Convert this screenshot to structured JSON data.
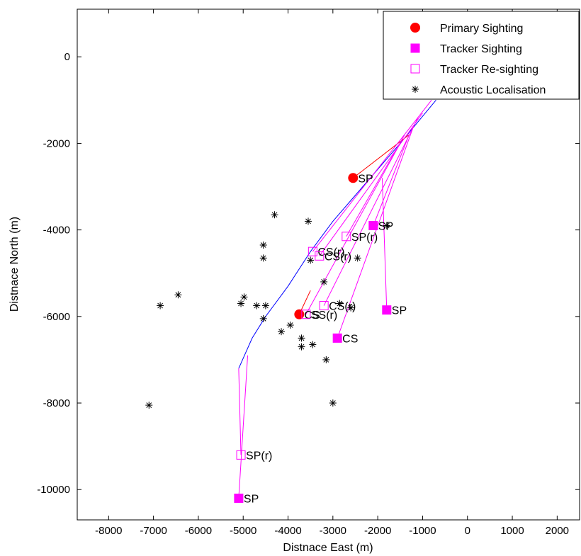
{
  "chart_data": {
    "type": "scatter",
    "xlabel": "Distnace East (m)",
    "ylabel": "Distnace North (m)",
    "xlim": [
      -8700,
      2500
    ],
    "ylim": [
      -10700,
      1100
    ],
    "xticks": [
      -8000,
      -7000,
      -6000,
      -5000,
      -4000,
      -3000,
      -2000,
      -1000,
      0,
      1000,
      2000
    ],
    "yticks": [
      0,
      -2000,
      -4000,
      -6000,
      -8000,
      -10000
    ],
    "grid": false,
    "legend_position": "top-right",
    "legend": [
      {
        "label": "Primary Sighting",
        "marker": "circle",
        "color": "#ff0000"
      },
      {
        "label": "Tracker Sighting",
        "marker": "square-filled",
        "color": "#ff00ff"
      },
      {
        "label": "Tracker Re-sighting",
        "marker": "square-open",
        "color": "#ff00ff"
      },
      {
        "label": "Acoustic Localisation",
        "marker": "asterisk",
        "color": "#000000"
      }
    ],
    "vessel_track": {
      "color": "#0000ff",
      "points": [
        [
          -700,
          -1000
        ],
        [
          -1100,
          -1500
        ],
        [
          -1500,
          -2000
        ],
        [
          -2000,
          -2600
        ],
        [
          -2500,
          -3200
        ],
        [
          -3000,
          -3800
        ],
        [
          -3500,
          -4500
        ],
        [
          -4000,
          -5300
        ],
        [
          -4500,
          -6000
        ],
        [
          -4800,
          -6500
        ],
        [
          -5100,
          -7200
        ]
      ]
    },
    "sightings": [
      {
        "type": "primary",
        "x": -2550,
        "y": -2800,
        "label": "SP",
        "from": [
          -1300,
          -1800
        ],
        "line_color": "#ff0000"
      },
      {
        "type": "primary",
        "x": -3750,
        "y": -5950,
        "label": "CS",
        "from": [
          -3500,
          -5400
        ],
        "line_color": "#ff0000"
      },
      {
        "type": "tracker",
        "x": -2100,
        "y": -3900,
        "label": "SP",
        "from": [
          -1300,
          -1800
        ],
        "line_color": "#ff00ff"
      },
      {
        "type": "tracker",
        "x": -1800,
        "y": -5850,
        "label": "SP",
        "from": [
          -1900,
          -2800
        ],
        "line_color": "#ff00ff"
      },
      {
        "type": "tracker",
        "x": -2900,
        "y": -6500,
        "label": "CS",
        "from": [
          -1200,
          -1600
        ],
        "line_color": "#ff00ff"
      },
      {
        "type": "tracker",
        "x": -5100,
        "y": -10200,
        "label": "SP",
        "from": [
          -4900,
          -6900
        ],
        "line_color": "#ff00ff"
      },
      {
        "type": "resight",
        "x": -2700,
        "y": -4150,
        "label": "SP(r)",
        "from": [
          -1400,
          -1800
        ],
        "line_color": "#ff00ff"
      },
      {
        "type": "resight",
        "x": -3450,
        "y": -4500,
        "label": "CS(r)",
        "from": [
          -800,
          -1000
        ],
        "line_color": "#ff00ff"
      },
      {
        "type": "resight",
        "x": -3300,
        "y": -4600,
        "label": "CS(r)",
        "from": [
          -1000,
          -1300
        ],
        "line_color": "#ff00ff"
      },
      {
        "type": "resight",
        "x": -3200,
        "y": -5750,
        "label": "CS(r)",
        "from": [
          -1100,
          -1400
        ],
        "line_color": "#ff00ff"
      },
      {
        "type": "resight",
        "x": -3600,
        "y": -5950,
        "label": "SS(r)",
        "from": [
          -1500,
          -2000
        ],
        "line_color": "#ff00ff"
      },
      {
        "type": "resight",
        "x": -5050,
        "y": -9200,
        "label": "SP(r)",
        "from": [
          -5100,
          -7200
        ],
        "line_color": "#ff00ff"
      }
    ],
    "acoustic": [
      [
        -7100,
        -8050
      ],
      [
        -6850,
        -5750
      ],
      [
        -6450,
        -5500
      ],
      [
        -5050,
        -5700
      ],
      [
        -4980,
        -5550
      ],
      [
        -4700,
        -5750
      ],
      [
        -4550,
        -6050
      ],
      [
        -4500,
        -5750
      ],
      [
        -4550,
        -4350
      ],
      [
        -4550,
        -4650
      ],
      [
        -4300,
        -3650
      ],
      [
        -4150,
        -6350
      ],
      [
        -3950,
        -6200
      ],
      [
        -3700,
        -6500
      ],
      [
        -3700,
        -6700
      ],
      [
        -3450,
        -6650
      ],
      [
        -3550,
        -3800
      ],
      [
        -3200,
        -5200
      ],
      [
        -3150,
        -7000
      ],
      [
        -3000,
        -8000
      ],
      [
        -3500,
        -4700
      ],
      [
        -2850,
        -5700
      ],
      [
        -2600,
        -5800
      ],
      [
        -2450,
        -4650
      ],
      [
        -1800,
        -3900
      ]
    ]
  }
}
